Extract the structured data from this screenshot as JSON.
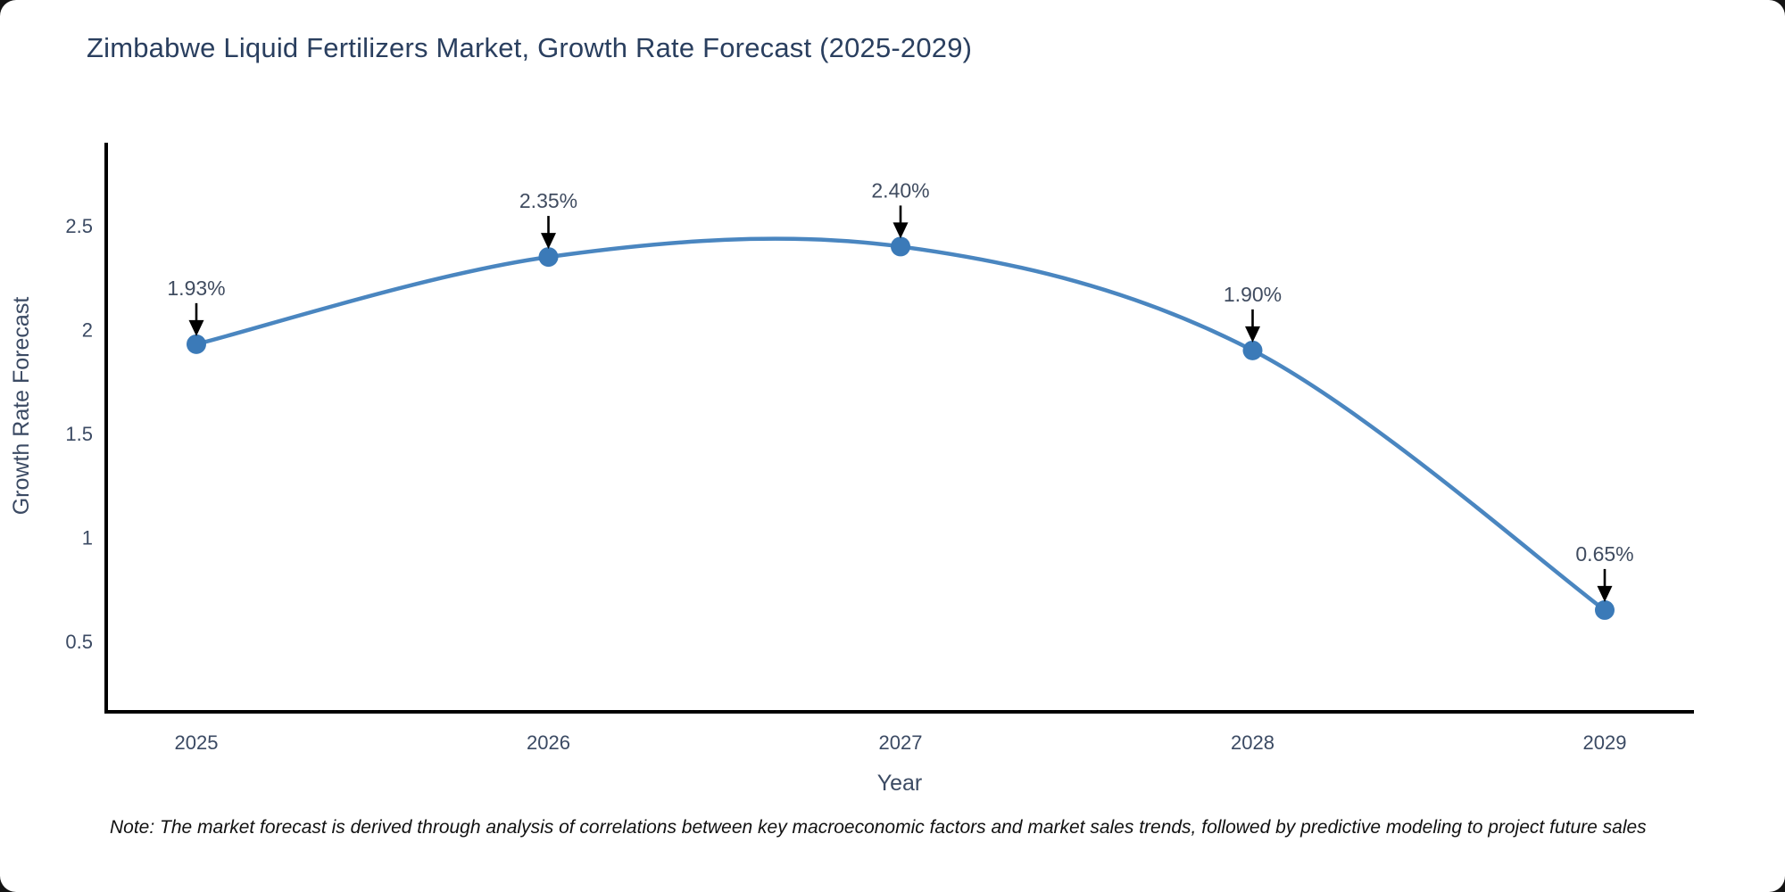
{
  "title": "Zimbabwe Liquid Fertilizers Market, Growth Rate Forecast (2025-2029)",
  "note": "Note: The market forecast is derived through analysis of correlations between key macroeconomic factors and market sales trends, followed by predictive modeling to project future sales",
  "chart_data": {
    "type": "line",
    "title": "Zimbabwe Liquid Fertilizers Market, Growth Rate Forecast (2025-2029)",
    "xlabel": "Year",
    "ylabel": "Growth Rate Forecast",
    "x": [
      2025,
      2026,
      2027,
      2028,
      2029
    ],
    "xtick_labels": [
      "2025",
      "2026",
      "2027",
      "2028",
      "2029"
    ],
    "series": [
      {
        "name": "Growth Rate Forecast",
        "values": [
          1.93,
          2.35,
          2.4,
          1.9,
          0.65
        ]
      }
    ],
    "point_labels": [
      "1.93%",
      "2.35%",
      "2.40%",
      "1.90%",
      "0.65%"
    ],
    "yticks": [
      0.5,
      1,
      1.5,
      2,
      2.5
    ],
    "ylim": [
      0.16,
      2.9
    ],
    "line_shape": "spline",
    "grid": false,
    "legend_position": "none",
    "colors": {
      "line": "#4a86c0",
      "marker": "#3b7ab8",
      "arrow": "#000000",
      "annotation_text": "#404c60",
      "axis_line": "#000000",
      "tick_text": "#3b4a63",
      "title_text": "#2a3f5f",
      "note_text": "#111111",
      "background": "#ffffff"
    }
  }
}
